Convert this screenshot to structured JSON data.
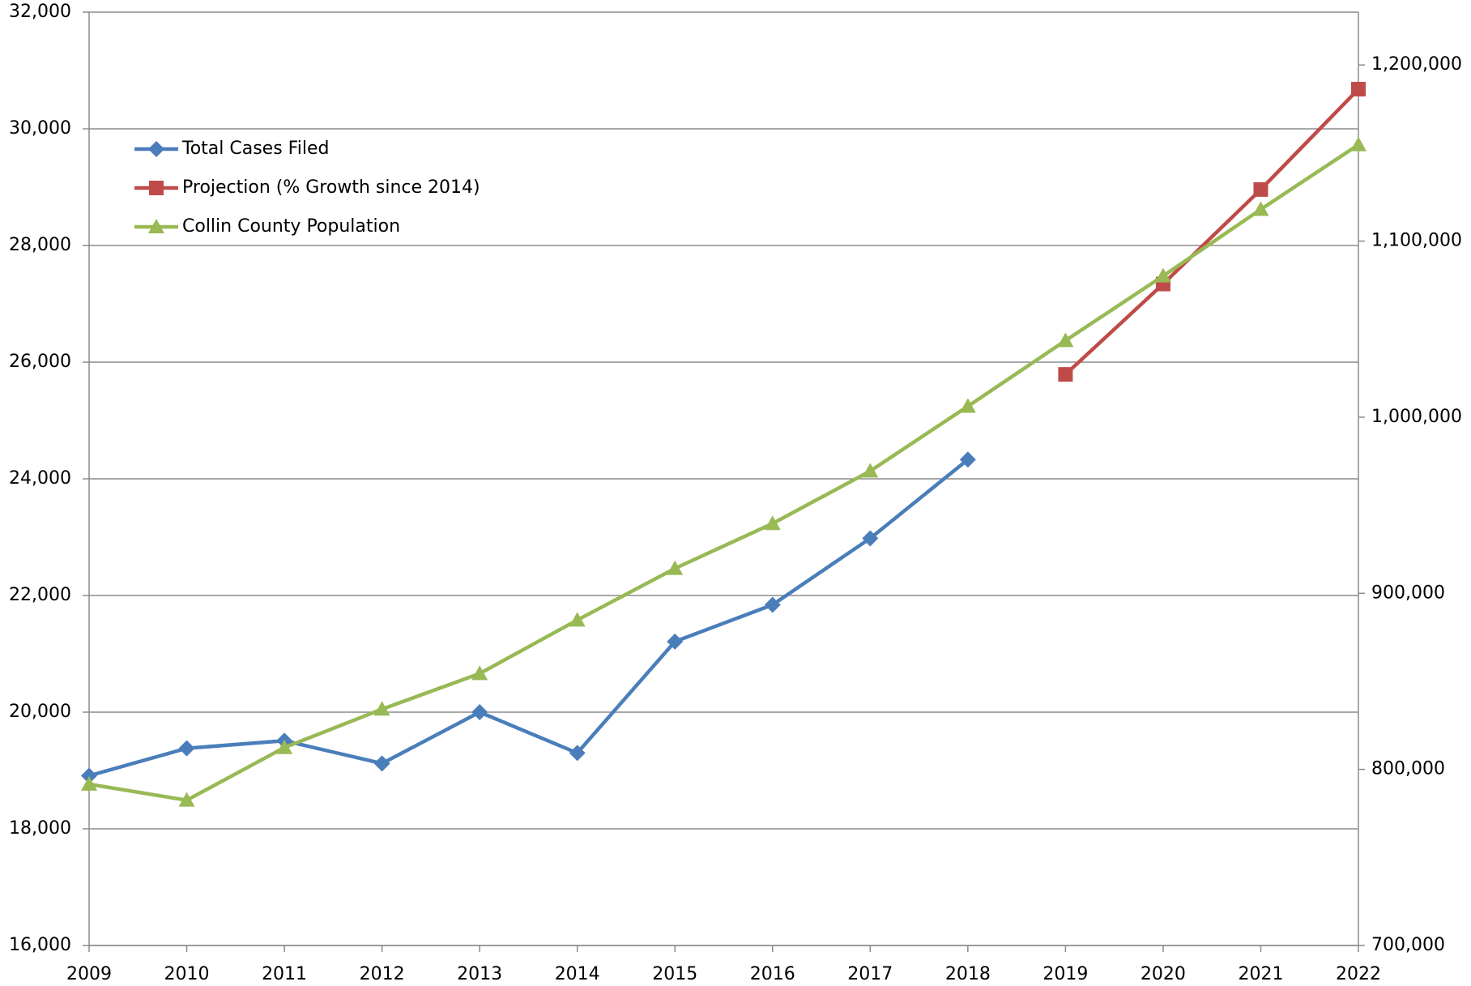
{
  "chart_data": {
    "type": "line",
    "x": [
      2009,
      2010,
      2011,
      2012,
      2013,
      2014,
      2015,
      2016,
      2017,
      2018,
      2019,
      2020,
      2021,
      2022
    ],
    "xlim": [
      2009,
      2022
    ],
    "xticks": [
      2009,
      2010,
      2011,
      2012,
      2013,
      2014,
      2015,
      2016,
      2017,
      2018,
      2019,
      2020,
      2021,
      2022
    ],
    "ylim": [
      16000,
      32000
    ],
    "yticks": [
      {
        "value": 16000,
        "label": "16,000"
      },
      {
        "value": 18000,
        "label": "18,000"
      },
      {
        "value": 20000,
        "label": "20,000"
      },
      {
        "value": 22000,
        "label": "22,000"
      },
      {
        "value": 24000,
        "label": "24,000"
      },
      {
        "value": 26000,
        "label": "26,000"
      },
      {
        "value": 28000,
        "label": "28,000"
      },
      {
        "value": 30000,
        "label": "30,000"
      },
      {
        "value": 32000,
        "label": "32,000"
      }
    ],
    "y2lim": [
      700000,
      1230000
    ],
    "y2ticks": [
      {
        "value": 700000,
        "label": "700,000"
      },
      {
        "value": 800000,
        "label": "800,000"
      },
      {
        "value": 900000,
        "label": "900,000"
      },
      {
        "value": 1000000,
        "label": "1,000,000"
      },
      {
        "value": 1100000,
        "label": "1,100,000"
      },
      {
        "value": 1200000,
        "label": "1,200,000"
      }
    ],
    "grid": true,
    "legend": "upper left",
    "series": [
      {
        "name": "Total Cases Filed",
        "color": "#4a7ebb",
        "marker": "diamond",
        "values": [
          18910,
          19380,
          19510,
          19120,
          20000,
          19300,
          21210,
          21840,
          22980,
          24330,
          null,
          null,
          null,
          null
        ]
      },
      {
        "name": "Projection (% Growth since 2014)",
        "color": "#be4b48",
        "marker": "square",
        "values": [
          null,
          null,
          null,
          null,
          null,
          null,
          null,
          null,
          null,
          null,
          25790,
          27340,
          28960,
          30680
        ]
      },
      {
        "name": "Collin County Population",
        "color": "#98b954",
        "marker": "triangle",
        "axis": "y2",
        "values": [
          791600,
          782500,
          812400,
          834200,
          854400,
          884800,
          914100,
          939600,
          969400,
          1006200,
          1043500,
          1080200,
          1118000,
          1154700
        ]
      }
    ]
  }
}
